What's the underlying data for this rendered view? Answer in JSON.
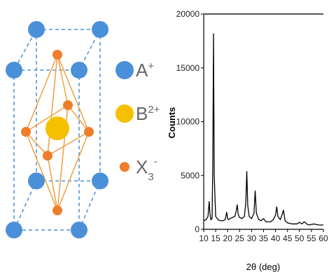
{
  "diagram": {
    "legend": [
      {
        "symbol": "A",
        "sup": "+"
      },
      {
        "symbol": "B",
        "sup": "2+"
      },
      {
        "symbol": "X",
        "sub": "3",
        "sup": "-"
      }
    ]
  },
  "chart_data": {
    "type": "line",
    "ylabel": "Counts",
    "xlabel": "2θ (deg)",
    "x": [
      10,
      11,
      11.8,
      12.3,
      12.6,
      13,
      13.5,
      13.8,
      14.1,
      14.4,
      15,
      16,
      17,
      18,
      19,
      19.6,
      20,
      20.4,
      21,
      22,
      23,
      23.6,
      24,
      24.4,
      25,
      26,
      27,
      27.6,
      28,
      28.4,
      29,
      30,
      31,
      31.5,
      32,
      33,
      34,
      35,
      36,
      37,
      38,
      39,
      40,
      40.5,
      41,
      42,
      42.8,
      43.3,
      44,
      45,
      47,
      49,
      50,
      51,
      52,
      53,
      54,
      56,
      58,
      60
    ],
    "series": [
      {
        "color": "#000000",
        "values": [
          800,
          900,
          1200,
          2600,
          1500,
          900,
          1000,
          6000,
          18200,
          5000,
          1200,
          900,
          800,
          800,
          900,
          1600,
          1000,
          900,
          1000,
          1100,
          1200,
          1700,
          2300,
          1400,
          1100,
          1000,
          1200,
          2500,
          5400,
          2200,
          1200,
          1000,
          1500,
          3600,
          1500,
          900,
          800,
          1000,
          700,
          700,
          700,
          900,
          1300,
          2100,
          1200,
          900,
          1400,
          1800,
          800,
          600,
          500,
          500,
          650,
          500,
          700,
          500,
          400,
          500,
          400,
          400
        ]
      }
    ],
    "xlim": [
      10,
      60
    ],
    "xticks": [
      10,
      15,
      20,
      25,
      30,
      35,
      40,
      45,
      50,
      55,
      60
    ],
    "ylim": [
      0,
      20000
    ],
    "yticks": [
      0,
      5000,
      10000,
      15000,
      20000
    ]
  }
}
